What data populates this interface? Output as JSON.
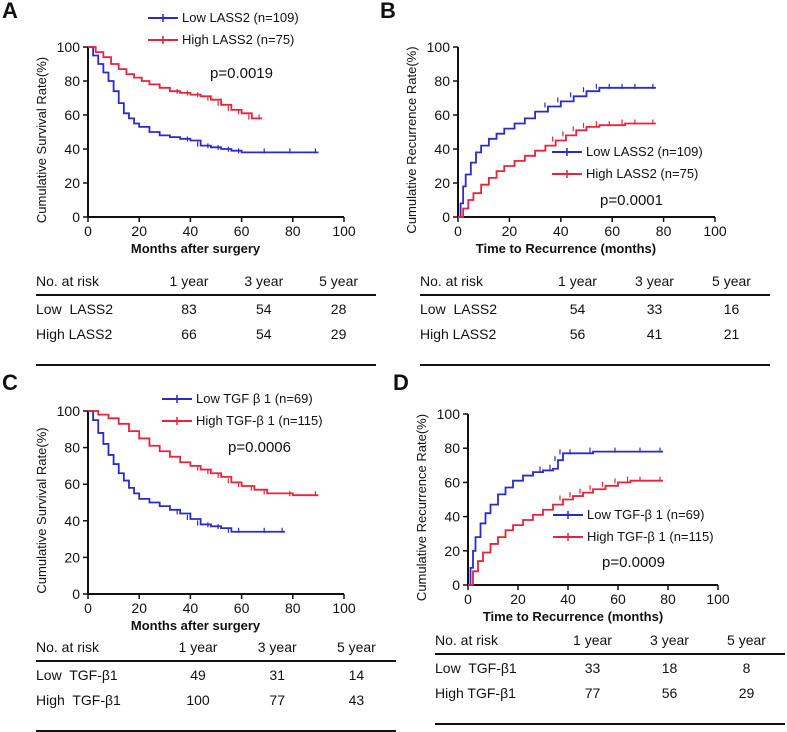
{
  "chart_data": [
    {
      "type": "line",
      "panel_label": "A",
      "xlabel": "Months after surgery",
      "ylabel": "Cumulative Survival Rate(%)",
      "xlim": [
        0,
        100
      ],
      "ylim": [
        0,
        100
      ],
      "xticks": [
        "0",
        "20",
        "40",
        "60",
        "80",
        "100"
      ],
      "yticks": [
        "0",
        "20",
        "40",
        "60",
        "80",
        "100"
      ],
      "annotation": "p=0.0019",
      "legend_position": "top-right",
      "series": [
        {
          "name": "Low LASS2 (n=109)",
          "color": "#2b2bc8",
          "x": [
            0,
            2,
            4,
            6,
            8,
            10,
            12,
            14,
            16,
            18,
            20,
            24,
            28,
            32,
            36,
            40,
            44,
            48,
            52,
            56,
            60,
            70,
            80,
            90
          ],
          "y": [
            100,
            95,
            90,
            85,
            80,
            74,
            67,
            61,
            58,
            55,
            53,
            50,
            48,
            47,
            46,
            45,
            42,
            41,
            40,
            39,
            38,
            38,
            38,
            38
          ]
        },
        {
          "name": "High LASS2 (n=75)",
          "color": "#e8233a",
          "x": [
            0,
            3,
            6,
            9,
            12,
            15,
            18,
            21,
            24,
            28,
            32,
            36,
            40,
            44,
            48,
            52,
            56,
            60,
            64,
            68
          ],
          "y": [
            100,
            97,
            94,
            90,
            87,
            84,
            82,
            80,
            78,
            76,
            74,
            73,
            72,
            71,
            69,
            66,
            63,
            61,
            58,
            58
          ]
        }
      ]
    },
    {
      "type": "line",
      "panel_label": "B",
      "xlabel": "Time to Recurrence (months)",
      "ylabel": "Cumulative Recurrence Rate(%)",
      "xlim": [
        0,
        100
      ],
      "ylim": [
        0,
        100
      ],
      "xticks": [
        "0",
        "20",
        "40",
        "60",
        "80",
        "100"
      ],
      "yticks": [
        "0",
        "20",
        "40",
        "60",
        "80",
        "100"
      ],
      "annotation": "p=0.0001",
      "legend_position": "middle-right",
      "series": [
        {
          "name": "Low LASS2 (n=109)",
          "color": "#2b2bc8",
          "x": [
            0,
            1,
            2,
            3,
            5,
            7,
            9,
            12,
            15,
            18,
            22,
            26,
            30,
            35,
            40,
            45,
            50,
            55,
            60,
            65,
            70,
            77
          ],
          "y": [
            0,
            8,
            18,
            25,
            32,
            38,
            42,
            46,
            49,
            52,
            55,
            58,
            62,
            65,
            68,
            71,
            74,
            76,
            76,
            76,
            76,
            76
          ]
        },
        {
          "name": "High LASS2 (n=75)",
          "color": "#e8233a",
          "x": [
            0,
            2,
            4,
            6,
            9,
            12,
            15,
            18,
            22,
            26,
            30,
            34,
            38,
            42,
            46,
            50,
            55,
            60,
            65,
            70,
            77
          ],
          "y": [
            0,
            5,
            10,
            14,
            19,
            23,
            27,
            30,
            33,
            36,
            39,
            42,
            45,
            48,
            51,
            53,
            54,
            54,
            55,
            55,
            55
          ]
        }
      ]
    },
    {
      "type": "line",
      "panel_label": "C",
      "xlabel": "Months after surgery",
      "ylabel": "Cumulative Survival Rate(%)",
      "xlim": [
        0,
        100
      ],
      "ylim": [
        0,
        100
      ],
      "xticks": [
        "0",
        "20",
        "40",
        "60",
        "80",
        "100"
      ],
      "yticks": [
        "0",
        "20",
        "40",
        "60",
        "80",
        "100"
      ],
      "annotation": "p=0.0006",
      "legend_position": "top-right",
      "series": [
        {
          "name": "Low TGF β 1 (n=69)",
          "color": "#2b2bc8",
          "x": [
            0,
            2,
            4,
            6,
            8,
            10,
            12,
            14,
            16,
            18,
            20,
            24,
            28,
            32,
            36,
            40,
            44,
            48,
            52,
            56,
            60,
            70,
            77
          ],
          "y": [
            100,
            95,
            88,
            82,
            76,
            71,
            66,
            62,
            58,
            55,
            52,
            50,
            48,
            46,
            44,
            41,
            38,
            37,
            36,
            34,
            34,
            34,
            34
          ]
        },
        {
          "name": "High TGF-β 1 (n=115)",
          "color": "#e8233a",
          "x": [
            0,
            4,
            8,
            12,
            16,
            20,
            24,
            28,
            32,
            36,
            40,
            44,
            48,
            52,
            56,
            60,
            65,
            70,
            80,
            90
          ],
          "y": [
            100,
            98,
            96,
            93,
            89,
            85,
            81,
            78,
            75,
            72,
            70,
            68,
            66,
            64,
            61,
            59,
            57,
            55,
            54,
            54
          ]
        }
      ]
    },
    {
      "type": "line",
      "panel_label": "D",
      "xlabel": "Time to Recurrence (months)",
      "ylabel": "Cumulative Recurrence Rate(%)",
      "xlim": [
        0,
        100
      ],
      "ylim": [
        0,
        100
      ],
      "xticks": [
        "0",
        "20",
        "40",
        "60",
        "80",
        "100"
      ],
      "yticks": [
        "0",
        "20",
        "40",
        "60",
        "80",
        "100"
      ],
      "annotation": "p=0.0009",
      "legend_position": "middle-right",
      "series": [
        {
          "name": "Low TGF-β 1 (n=69)",
          "color": "#2b2bc8",
          "x": [
            0,
            1,
            2,
            3,
            5,
            7,
            9,
            12,
            15,
            18,
            22,
            26,
            30,
            34,
            36,
            38,
            42,
            50,
            60,
            70,
            78
          ],
          "y": [
            0,
            10,
            20,
            28,
            36,
            42,
            47,
            53,
            57,
            61,
            64,
            66,
            67,
            68,
            73,
            77,
            77,
            78,
            78,
            78,
            78
          ]
        },
        {
          "name": "High TGF-β 1 (n=115)",
          "color": "#e8233a",
          "x": [
            0,
            2,
            4,
            6,
            9,
            12,
            15,
            18,
            22,
            26,
            30,
            34,
            38,
            42,
            46,
            50,
            55,
            60,
            65,
            70,
            78
          ],
          "y": [
            0,
            8,
            14,
            19,
            24,
            28,
            32,
            35,
            38,
            41,
            44,
            47,
            50,
            52,
            54,
            56,
            58,
            60,
            61,
            61,
            61
          ]
        }
      ]
    }
  ],
  "risk_tables": [
    {
      "header": [
        "No. at risk",
        "1 year",
        "3 year",
        "5 year"
      ],
      "rows": [
        [
          "Low  LASS2",
          "83",
          "54",
          "28"
        ],
        [
          "High LASS2",
          "66",
          "54",
          "29"
        ]
      ]
    },
    {
      "header": [
        "No. at risk",
        "1 year",
        "3 year",
        "5 year"
      ],
      "rows": [
        [
          "Low  LASS2",
          "54",
          "33",
          "16"
        ],
        [
          "High LASS2",
          "56",
          "41",
          "21"
        ]
      ]
    },
    {
      "header": [
        "No. at risk",
        "1 year",
        "3 year",
        "5 year"
      ],
      "rows": [
        [
          "Low  TGF-β1",
          "49",
          "31",
          "14"
        ],
        [
          "High  TGF-β1",
          "100",
          "77",
          "43"
        ]
      ]
    },
    {
      "header": [
        "No. at risk",
        "1 year",
        "3 year",
        "5 year"
      ],
      "rows": [
        [
          "Low  TGF-β1",
          "33",
          "18",
          "8"
        ],
        [
          "High TGF-β1",
          "77",
          "56",
          "29"
        ]
      ]
    }
  ]
}
